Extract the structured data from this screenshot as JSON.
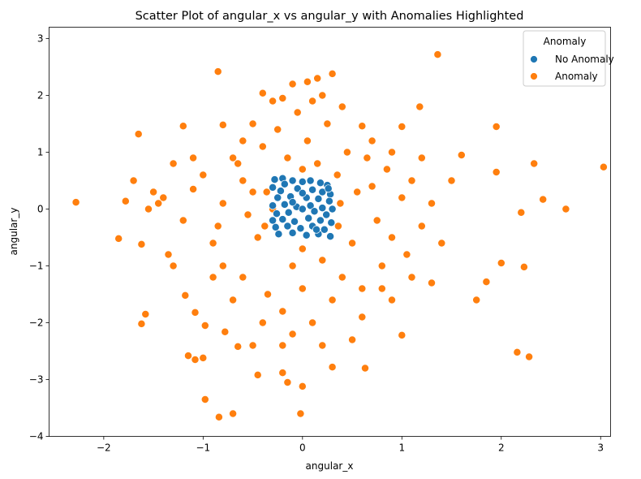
{
  "chart_data": {
    "type": "scatter",
    "title": "Scatter Plot of angular_x vs angular_y with Anomalies Highlighted",
    "xlabel": "angular_x",
    "ylabel": "angular_y",
    "xlim": [
      -2.55,
      3.1
    ],
    "ylim": [
      -4.0,
      3.2
    ],
    "xticks": [
      -2,
      -1,
      0,
      1,
      2,
      3
    ],
    "yticks": [
      -4,
      -3,
      -2,
      -1,
      0,
      1,
      2,
      3
    ],
    "grid": false,
    "legend": {
      "title": "Anomaly",
      "position": "top-right"
    },
    "series": [
      {
        "name": "No Anomaly",
        "color": "#1f77b4",
        "points": [
          [
            -0.28,
            0.52
          ],
          [
            -0.2,
            0.54
          ],
          [
            -0.1,
            0.5
          ],
          [
            0.0,
            0.48
          ],
          [
            0.08,
            0.5
          ],
          [
            0.18,
            0.46
          ],
          [
            0.25,
            0.42
          ],
          [
            -0.3,
            0.38
          ],
          [
            -0.22,
            0.32
          ],
          [
            -0.05,
            0.36
          ],
          [
            0.1,
            0.34
          ],
          [
            0.2,
            0.3
          ],
          [
            0.28,
            0.26
          ],
          [
            -0.25,
            0.2
          ],
          [
            -0.12,
            0.22
          ],
          [
            0.04,
            0.2
          ],
          [
            0.16,
            0.18
          ],
          [
            0.27,
            0.14
          ],
          [
            -0.3,
            0.06
          ],
          [
            -0.18,
            0.08
          ],
          [
            -0.06,
            0.04
          ],
          [
            0.08,
            0.06
          ],
          [
            0.2,
            0.02
          ],
          [
            0.3,
            0.0
          ],
          [
            -0.26,
            -0.08
          ],
          [
            -0.14,
            -0.06
          ],
          [
            0.0,
            0.0
          ],
          [
            0.12,
            -0.04
          ],
          [
            0.24,
            -0.1
          ],
          [
            -0.3,
            -0.2
          ],
          [
            -0.2,
            -0.18
          ],
          [
            -0.08,
            -0.22
          ],
          [
            0.06,
            -0.16
          ],
          [
            0.18,
            -0.2
          ],
          [
            0.29,
            -0.24
          ],
          [
            -0.27,
            -0.32
          ],
          [
            -0.15,
            -0.3
          ],
          [
            -0.02,
            -0.34
          ],
          [
            0.1,
            -0.3
          ],
          [
            0.22,
            -0.36
          ],
          [
            -0.24,
            -0.44
          ],
          [
            -0.1,
            -0.42
          ],
          [
            0.04,
            -0.46
          ],
          [
            0.16,
            -0.44
          ],
          [
            0.28,
            -0.48
          ],
          [
            -0.18,
            0.44
          ],
          [
            0.0,
            0.28
          ],
          [
            -0.1,
            0.12
          ],
          [
            0.14,
            -0.36
          ],
          [
            0.26,
            0.36
          ]
        ]
      },
      {
        "name": "Anomaly",
        "color": "#ff7f0e",
        "points": [
          [
            -2.28,
            0.12
          ],
          [
            -1.85,
            -0.52
          ],
          [
            -1.78,
            0.14
          ],
          [
            -1.65,
            1.32
          ],
          [
            -1.62,
            -0.62
          ],
          [
            -1.62,
            -2.02
          ],
          [
            -1.58,
            -1.85
          ],
          [
            -1.55,
            0.0
          ],
          [
            -1.4,
            0.2
          ],
          [
            -1.35,
            -0.8
          ],
          [
            -1.3,
            0.8
          ],
          [
            -1.2,
            1.46
          ],
          [
            -1.18,
            -1.52
          ],
          [
            -1.15,
            -2.58
          ],
          [
            -1.08,
            -1.82
          ],
          [
            -1.08,
            -2.65
          ],
          [
            -1.0,
            -2.62
          ],
          [
            -0.98,
            -2.05
          ],
          [
            -0.98,
            -3.35
          ],
          [
            -0.85,
            2.42
          ],
          [
            -0.84,
            -3.66
          ],
          [
            -0.8,
            1.48
          ],
          [
            -0.78,
            -2.16
          ],
          [
            -0.7,
            -3.6
          ],
          [
            -0.65,
            -2.42
          ],
          [
            -0.5,
            1.5
          ],
          [
            -0.45,
            -2.92
          ],
          [
            -0.4,
            2.04
          ],
          [
            -0.3,
            1.9
          ],
          [
            -0.2,
            -2.88
          ],
          [
            -0.15,
            -3.05
          ],
          [
            -0.1,
            2.2
          ],
          [
            0.0,
            -3.12
          ],
          [
            -0.02,
            -3.6
          ],
          [
            0.05,
            2.24
          ],
          [
            0.15,
            2.3
          ],
          [
            0.3,
            2.38
          ],
          [
            0.3,
            -2.78
          ],
          [
            0.63,
            -2.8
          ],
          [
            0.6,
            1.46
          ],
          [
            0.9,
            -1.6
          ],
          [
            1.0,
            1.45
          ],
          [
            1.0,
            -2.22
          ],
          [
            1.18,
            1.8
          ],
          [
            1.3,
            -1.3
          ],
          [
            1.36,
            2.72
          ],
          [
            1.5,
            0.5
          ],
          [
            1.6,
            0.95
          ],
          [
            1.75,
            -1.6
          ],
          [
            1.85,
            -1.28
          ],
          [
            1.95,
            1.45
          ],
          [
            1.95,
            0.65
          ],
          [
            2.0,
            -0.95
          ],
          [
            2.2,
            -0.06
          ],
          [
            2.23,
            -1.02
          ],
          [
            2.16,
            -2.52
          ],
          [
            2.28,
            -2.6
          ],
          [
            2.33,
            0.8
          ],
          [
            2.42,
            0.17
          ],
          [
            2.65,
            0.0
          ],
          [
            3.03,
            0.74
          ],
          [
            -1.7,
            0.5
          ],
          [
            -1.45,
            0.1
          ],
          [
            -1.1,
            0.35
          ],
          [
            -0.9,
            -0.6
          ],
          [
            -0.7,
            0.9
          ],
          [
            -0.6,
            -1.2
          ],
          [
            -0.5,
            0.3
          ],
          [
            -0.45,
            -0.5
          ],
          [
            -0.4,
            1.1
          ],
          [
            -0.35,
            -1.5
          ],
          [
            -0.3,
            0.0
          ],
          [
            -0.25,
            1.4
          ],
          [
            -0.2,
            -1.8
          ],
          [
            -0.15,
            0.9
          ],
          [
            -0.1,
            -1.0
          ],
          [
            -0.05,
            1.7
          ],
          [
            0.0,
            -1.4
          ],
          [
            0.05,
            1.2
          ],
          [
            0.1,
            -2.0
          ],
          [
            0.15,
            0.8
          ],
          [
            0.2,
            -0.9
          ],
          [
            0.25,
            1.5
          ],
          [
            0.3,
            -1.6
          ],
          [
            0.35,
            0.6
          ],
          [
            0.4,
            -1.2
          ],
          [
            0.45,
            1.0
          ],
          [
            0.5,
            -0.6
          ],
          [
            0.55,
            0.3
          ],
          [
            0.6,
            -1.4
          ],
          [
            0.7,
            0.4
          ],
          [
            0.75,
            -0.2
          ],
          [
            0.8,
            -1.0
          ],
          [
            0.85,
            0.7
          ],
          [
            0.9,
            -0.5
          ],
          [
            1.0,
            0.2
          ],
          [
            1.05,
            -0.8
          ],
          [
            1.1,
            0.5
          ],
          [
            1.2,
            -0.3
          ],
          [
            1.3,
            0.1
          ],
          [
            -0.8,
            0.1
          ],
          [
            -0.85,
            -0.3
          ],
          [
            -1.0,
            0.6
          ],
          [
            -1.2,
            -0.2
          ],
          [
            -0.55,
            -0.1
          ],
          [
            -0.6,
            0.5
          ],
          [
            0.38,
            0.1
          ],
          [
            0.36,
            -0.3
          ],
          [
            -0.36,
            0.3
          ],
          [
            -0.38,
            -0.3
          ],
          [
            0.0,
            0.7
          ],
          [
            0.0,
            -0.7
          ],
          [
            0.1,
            1.9
          ],
          [
            -0.1,
            -2.2
          ],
          [
            0.4,
            1.8
          ],
          [
            -0.4,
            -2.0
          ],
          [
            0.6,
            -1.9
          ],
          [
            -0.6,
            1.2
          ],
          [
            0.7,
            1.2
          ],
          [
            -0.7,
            -1.6
          ],
          [
            0.9,
            1.0
          ],
          [
            -0.9,
            -1.2
          ],
          [
            1.2,
            0.9
          ],
          [
            -1.3,
            -1.0
          ],
          [
            1.4,
            -0.6
          ],
          [
            -1.5,
            0.3
          ],
          [
            0.2,
            -2.4
          ],
          [
            -0.2,
            -2.4
          ],
          [
            0.5,
            -2.3
          ],
          [
            -0.5,
            -2.4
          ],
          [
            0.2,
            2.0
          ],
          [
            -0.2,
            1.95
          ],
          [
            0.65,
            0.9
          ],
          [
            -0.65,
            0.8
          ],
          [
            0.8,
            -1.4
          ],
          [
            -0.8,
            -1.0
          ],
          [
            1.1,
            -1.2
          ],
          [
            -1.1,
            0.9
          ]
        ]
      }
    ]
  }
}
